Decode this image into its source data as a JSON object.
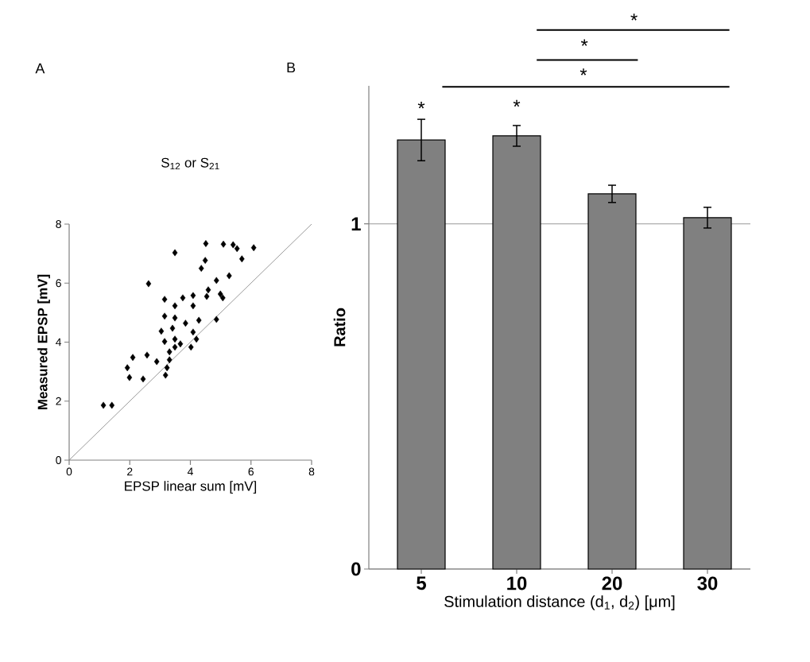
{
  "chart_data": [
    {
      "type": "scatter",
      "title": "S$_{12}$ or S$_{21}$",
      "xlabel": "EPSP linear sum [mV]",
      "ylabel": "Measured EPSP [mV]",
      "marker": "diamond",
      "xlim": [
        0,
        8
      ],
      "ylim": [
        0,
        8
      ],
      "xticks": [
        0,
        2,
        4,
        6,
        8
      ],
      "yticks": [
        0,
        2,
        4,
        6,
        8
      ],
      "annotations": [
        "A"
      ],
      "series": [
        {
          "type": "scatter",
          "color": "#000000",
          "x": [
            1.13,
            1.41,
            4.51,
            5.09,
            5.41,
            5.54,
            6.09,
            5.7,
            3.49,
            4.49,
            4.36,
            5.28,
            2.62,
            4.86,
            4.59,
            4.99,
            5.07,
            3.15,
            3.75,
            4.09,
            4.54,
            4.09,
            3.49,
            3.15,
            3.49,
            3.84,
            4.28,
            4.86,
            3.04,
            3.41,
            4.09,
            3.15,
            3.49,
            3.67,
            4.2,
            4.02,
            3.31,
            3.49,
            2.1,
            2.57,
            2.89,
            3.31,
            1.92,
            3.23,
            1.99,
            2.44,
            3.18
          ],
          "values": [
            1.86,
            1.86,
            7.34,
            7.32,
            7.3,
            7.17,
            7.2,
            6.82,
            7.03,
            6.77,
            6.5,
            6.25,
            5.98,
            6.09,
            5.77,
            5.63,
            5.5,
            5.45,
            5.5,
            5.58,
            5.55,
            5.23,
            5.23,
            4.88,
            4.82,
            4.64,
            4.74,
            4.77,
            4.37,
            4.47,
            4.34,
            4.02,
            4.1,
            3.94,
            4.1,
            3.83,
            3.67,
            3.83,
            3.48,
            3.56,
            3.34,
            3.4,
            3.13,
            3.13,
            2.8,
            2.75,
            2.88
          ]
        },
        {
          "type": "line",
          "color": "#808080",
          "marker": "none",
          "x": [
            0,
            8
          ],
          "values": [
            0,
            8
          ]
        }
      ]
    },
    {
      "type": "bar",
      "xlabel": "Stimulation distance (d$_{1}$, d$_{2}$) [μm]",
      "ylabel": "Ratio",
      "categories": [
        "5",
        "10",
        "20",
        "30"
      ],
      "values": [
        1.243,
        1.255,
        1.087,
        1.018
      ],
      "errors": [
        0.06,
        0.03,
        0.025,
        0.03
      ],
      "color": "#808080",
      "ylim": [
        0,
        1.4
      ],
      "yticks": [
        0,
        1
      ],
      "grid": "y",
      "annotations": [
        "B",
        "*",
        "*",
        "*",
        "*",
        "*"
      ]
    }
  ]
}
